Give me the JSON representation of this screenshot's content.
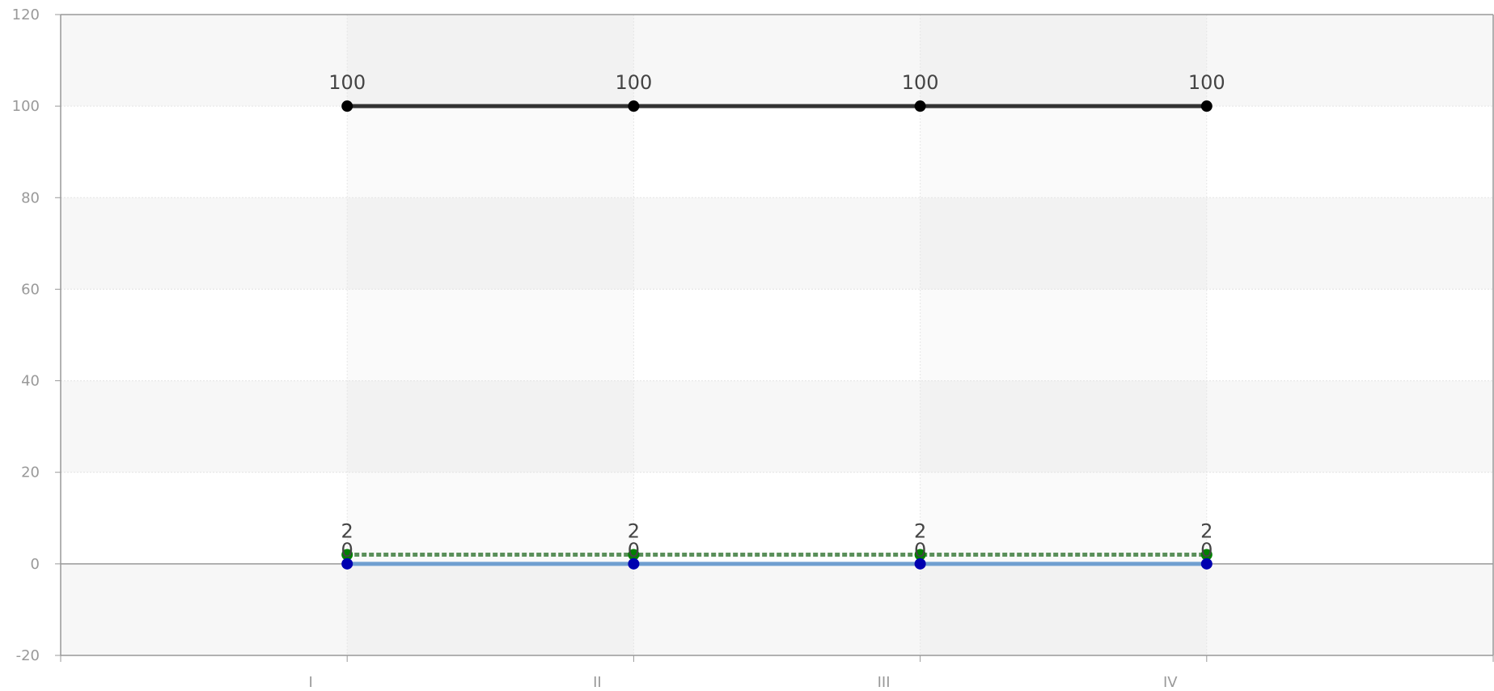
{
  "chart_data": {
    "type": "line",
    "title": "",
    "xlabel": "",
    "ylabel": "",
    "categories": [
      "I",
      "II",
      "III",
      "IV"
    ],
    "ylim": [
      -20,
      120
    ],
    "yticks": [
      -20,
      0,
      20,
      40,
      60,
      80,
      100,
      120
    ],
    "grid": true,
    "legend": "none",
    "series": [
      {
        "values": [
          100,
          100,
          100,
          100
        ],
        "color": "#333333",
        "marker_color": "#000000",
        "style": "solid",
        "labels": [
          "100",
          "100",
          "100",
          "100"
        ]
      },
      {
        "values": [
          2,
          2,
          2,
          2
        ],
        "color": "#5a8f5a",
        "marker_color": "#008000",
        "style": "dashed",
        "labels": [
          "2",
          "2",
          "2",
          "2"
        ]
      },
      {
        "values": [
          0,
          0,
          0,
          0
        ],
        "color": "#6f9fd0",
        "marker_color": "#0000b0",
        "style": "solid",
        "labels": [
          "0",
          "0",
          "0",
          "0"
        ]
      }
    ]
  }
}
